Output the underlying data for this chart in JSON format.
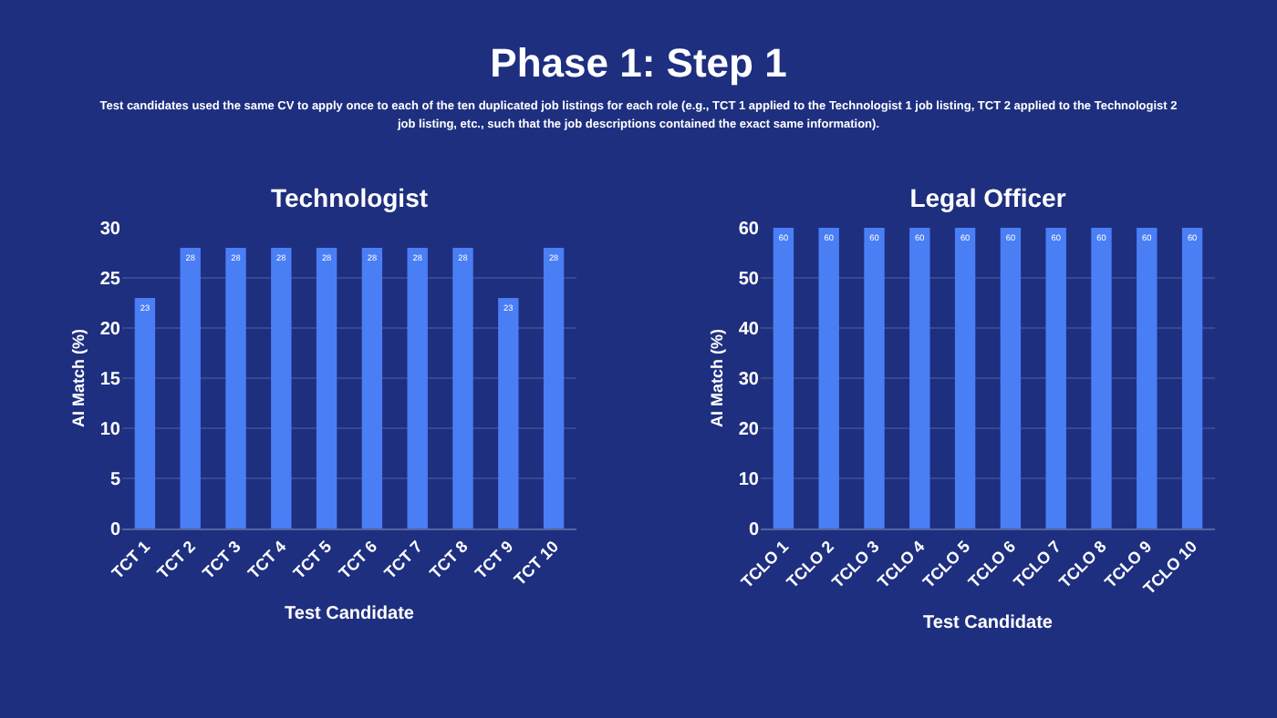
{
  "chart_data": [
    {
      "type": "other",
      "title": "Phase 1: Step 1",
      "subtitle": "Test candidates used the same CV to apply once to each of the ten duplicated job listings for each role (e.g., TCT 1 applied to the Technologist 1 job listing, TCT 2 applied to the Technologist 2 job listing, etc., such that the job descriptions contained the exact same information)."
    },
    {
      "type": "bar",
      "title": "Technologist",
      "xlabel": "Test Candidate",
      "ylabel": "AI Match (%)",
      "categories": [
        "TCT 1",
        "TCT 2",
        "TCT 3",
        "TCT 4",
        "TCT 5",
        "TCT 6",
        "TCT 7",
        "TCT 8",
        "TCT 9",
        "TCT 10"
      ],
      "values": [
        23,
        28,
        28,
        28,
        28,
        28,
        28,
        28,
        23,
        28
      ],
      "color": "#4a7ef5",
      "ylim": [
        0,
        30
      ],
      "yticks": [
        0,
        5,
        10,
        15,
        20,
        25,
        30
      ],
      "grid": "y",
      "data_labels": true
    },
    {
      "type": "bar",
      "title": "Legal Officer",
      "xlabel": "Test Candidate",
      "ylabel": "AI Match (%)",
      "categories": [
        "TCLO 1",
        "TCLO 2",
        "TCLO 3",
        "TCLO 4",
        "TCLO 5",
        "TCLO 6",
        "TCLO 7",
        "TCLO 8",
        "TCLO 9",
        "TCLO 10"
      ],
      "values": [
        60,
        60,
        60,
        60,
        60,
        60,
        60,
        60,
        60,
        60
      ],
      "color": "#4a7ef5",
      "ylim": [
        0,
        60
      ],
      "yticks": [
        0,
        10,
        20,
        30,
        40,
        50,
        60
      ],
      "grid": "y",
      "data_labels": true
    }
  ]
}
